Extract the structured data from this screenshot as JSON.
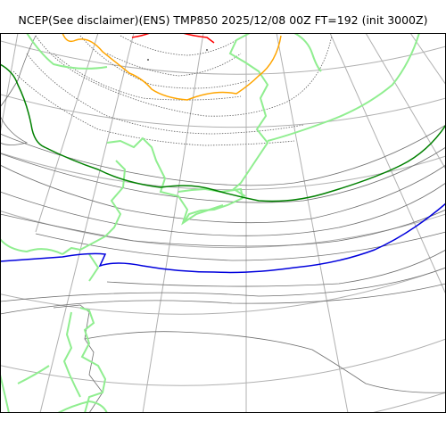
{
  "title": "NCEP(See disclaimer)(ENS) TMP850 2025/12/08 00Z FT=192 (init 3000Z)",
  "colors": {
    "graticule": "#b0b0b0",
    "coastline": "#90ee90",
    "contour_thin_gray": "#707070",
    "contour_dotted": "#606060",
    "isotherm_orange": "#ffa500",
    "isotherm_red": "#ff0000",
    "isotherm_green": "#008000",
    "isotherm_blue": "#0000dd",
    "frame": "#000000"
  }
}
